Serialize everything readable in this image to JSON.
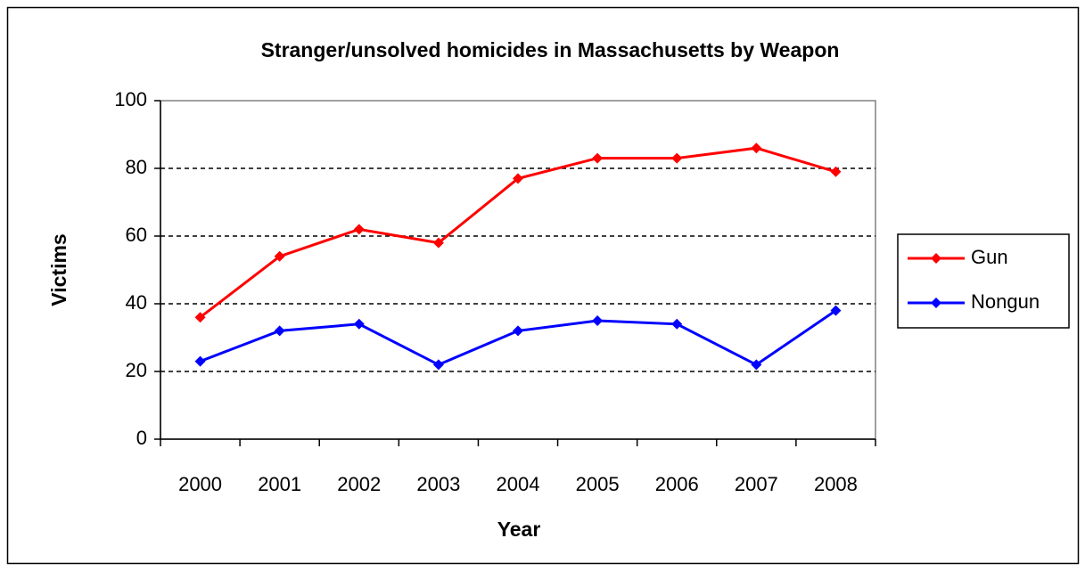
{
  "chart_data": {
    "type": "line",
    "title": "Stranger/unsolved homicides in Massachusetts by Weapon",
    "x_label": "Year",
    "y_label": "Victims",
    "categories": [
      "2000",
      "2001",
      "2002",
      "2003",
      "2004",
      "2005",
      "2006",
      "2007",
      "2008"
    ],
    "series": [
      {
        "name": "Gun",
        "color": "#ff0000",
        "values": [
          36,
          54,
          62,
          58,
          77,
          83,
          83,
          86,
          79
        ]
      },
      {
        "name": "Nongun",
        "color": "#0000ff",
        "values": [
          23,
          32,
          34,
          22,
          32,
          35,
          34,
          22,
          38
        ]
      }
    ],
    "ylim": [
      0,
      100
    ],
    "yticks": [
      0,
      20,
      40,
      60,
      80,
      100
    ],
    "grid": true,
    "legend": "right"
  }
}
